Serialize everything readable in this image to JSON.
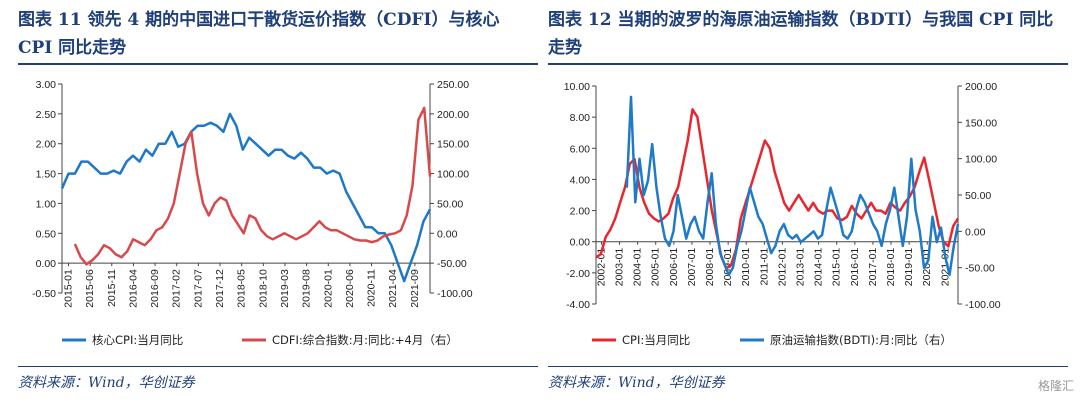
{
  "left": {
    "title": "图表 11 领先 4 期的中国进口干散货运价指数（CDFI）与核心 CPI 同比走势",
    "source": "资料来源：Wind，华创证券"
  },
  "right": {
    "title": "图表 12 当期的波罗的海原油运输指数（BDTI）与我国 CPI 同比走势",
    "source": "资料来源：Wind，华创证券"
  },
  "watermark": "格隆汇",
  "chart_data": [
    {
      "type": "line",
      "title": "领先 4 期的中国进口干散货运价指数（CDFI）与核心 CPI 同比走势",
      "x_ticks": [
        "2015-01",
        "2015-06",
        "2015-11",
        "2016-04",
        "2016-09",
        "2017-02",
        "2017-07",
        "2017-12",
        "2018-05",
        "2018-10",
        "2019-03",
        "2019-08",
        "2020-01",
        "2020-06",
        "2020-11",
        "2021-04",
        "2021-09"
      ],
      "left_axis": {
        "ylim": [
          -0.5,
          3.0
        ],
        "ticks": [
          "3.00",
          "2.50",
          "2.00",
          "1.50",
          "1.00",
          "0.50",
          "0.00",
          "-0.50"
        ]
      },
      "right_axis": {
        "ylim": [
          -100,
          250
        ],
        "ticks": [
          "250.00",
          "200.00",
          "150.00",
          "100.00",
          "50.00",
          "0.00",
          "-50.00",
          "-100.00"
        ]
      },
      "series": [
        {
          "name": "核心CPI:当月同比",
          "color": "#1f77c8",
          "axis": "left",
          "x_start": 0,
          "x_end": 1.0,
          "values": [
            1.25,
            1.5,
            1.5,
            1.7,
            1.7,
            1.6,
            1.5,
            1.5,
            1.55,
            1.5,
            1.7,
            1.8,
            1.7,
            1.9,
            1.8,
            2.0,
            2.0,
            2.2,
            1.95,
            2.0,
            2.2,
            2.3,
            2.3,
            2.35,
            2.3,
            2.2,
            2.5,
            2.3,
            1.9,
            2.1,
            2.0,
            1.9,
            1.8,
            1.9,
            1.9,
            1.8,
            1.75,
            1.85,
            1.75,
            1.6,
            1.6,
            1.5,
            1.55,
            1.5,
            1.2,
            1.0,
            0.8,
            0.6,
            0.6,
            0.5,
            0.5,
            0.3,
            0.0,
            -0.3,
            0.0,
            0.3,
            0.7,
            0.9
          ]
        },
        {
          "name": "CDFI:综合指数:月:同比:+4月（右）",
          "color": "#d9484a",
          "axis": "right",
          "x_start": 0.035,
          "x_end": 1.0,
          "values": [
            -18,
            -40,
            -52,
            -45,
            -35,
            -20,
            -25,
            -35,
            -40,
            -30,
            -10,
            -15,
            -20,
            -10,
            5,
            10,
            25,
            50,
            100,
            150,
            170,
            100,
            50,
            30,
            50,
            60,
            55,
            30,
            15,
            0,
            30,
            25,
            5,
            -5,
            -10,
            -5,
            0,
            -5,
            -10,
            -5,
            0,
            10,
            20,
            10,
            5,
            5,
            0,
            -5,
            -10,
            -12,
            -12,
            -15,
            -12,
            -5,
            -2,
            0,
            5,
            30,
            80,
            190,
            210,
            95
          ]
        }
      ]
    },
    {
      "type": "line",
      "title": "当期的波罗的海原油运输指数（BDTI）与我国 CPI 同比走势",
      "x_ticks": [
        "2002-01",
        "2003-01",
        "2004-01",
        "2005-01",
        "2006-01",
        "2007-01",
        "2008-01",
        "2009-01",
        "2010-01",
        "2011-01",
        "2012-01",
        "2013-01",
        "2014-01",
        "2015-01",
        "2016-01",
        "2017-01",
        "2018-01",
        "2019-01",
        "2020-01",
        "2021-01"
      ],
      "left_axis": {
        "ylim": [
          -4.0,
          10.0
        ],
        "ticks": [
          "10.00",
          "8.00",
          "6.00",
          "4.00",
          "2.00",
          "0.00",
          "-2.00",
          "-4.00"
        ]
      },
      "right_axis": {
        "ylim": [
          -100,
          200
        ],
        "ticks": [
          "200.00",
          "150.00",
          "100.00",
          "50.00",
          "0.00",
          "-50.00",
          "-100.00"
        ]
      },
      "series": [
        {
          "name": "CPI:当月同比",
          "color": "#e8262d",
          "axis": "left",
          "x_start": 0,
          "x_end": 1.0,
          "values": [
            -1.0,
            -0.8,
            0.3,
            0.8,
            1.5,
            2.5,
            3.5,
            5.0,
            5.3,
            3.5,
            2.5,
            1.8,
            1.5,
            1.3,
            1.5,
            1.8,
            2.8,
            3.5,
            5.0,
            6.5,
            8.5,
            8.0,
            6.0,
            4.0,
            2.0,
            0.5,
            -1.0,
            -1.7,
            -1.5,
            -0.5,
            1.5,
            2.5,
            3.5,
            4.5,
            5.5,
            6.5,
            6.0,
            4.5,
            3.5,
            2.5,
            2.0,
            2.5,
            3.0,
            2.5,
            2.0,
            2.5,
            2.0,
            1.8,
            2.0,
            2.0,
            1.5,
            1.4,
            1.6,
            2.3,
            1.8,
            1.5,
            2.0,
            2.5,
            2.0,
            2.0,
            1.8,
            2.5,
            2.2,
            2.0,
            2.5,
            2.9,
            3.5,
            4.5,
            5.4,
            4.0,
            2.5,
            1.0,
            0.0,
            -0.3,
            1.0,
            1.5
          ]
        },
        {
          "name": "原油运输指数(BDTI):月:同比（右）",
          "color": "#1f7ac8",
          "axis": "right",
          "x_start": 0.085,
          "x_end": 1.0,
          "values": [
            60,
            185,
            40,
            100,
            50,
            70,
            120,
            60,
            20,
            -10,
            -20,
            0,
            50,
            20,
            -10,
            10,
            20,
            0,
            -10,
            40,
            80,
            10,
            -30,
            -45,
            -60,
            -50,
            -20,
            0,
            30,
            60,
            40,
            20,
            10,
            -10,
            -30,
            -20,
            0,
            10,
            -5,
            -10,
            -5,
            -15,
            -10,
            -5,
            0,
            -10,
            -5,
            30,
            60,
            40,
            20,
            -5,
            -10,
            0,
            30,
            50,
            40,
            25,
            10,
            0,
            -20,
            10,
            30,
            60,
            20,
            -20,
            20,
            100,
            30,
            0,
            -50,
            -40,
            20,
            -15,
            5,
            -35,
            -60,
            -20,
            10
          ]
        }
      ]
    }
  ],
  "legend": {
    "left": [
      "核心CPI:当月同比",
      "CDFI:综合指数:月:同比:+4月（右）"
    ],
    "right": [
      "CPI:当月同比",
      "原油运输指数(BDTI):月:同比（右）"
    ]
  }
}
